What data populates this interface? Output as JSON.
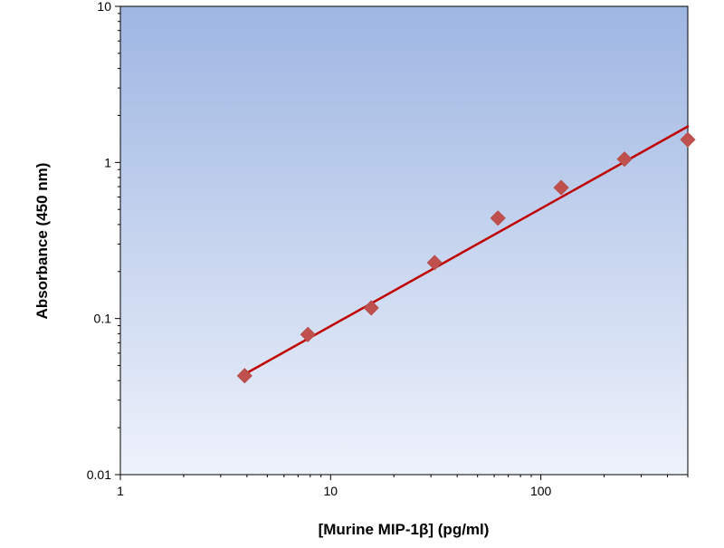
{
  "chart_data": {
    "type": "scatter",
    "title": "",
    "xlabel": "[Murine MIP-1β] (pg/ml)",
    "ylabel": "Absorbance (450 nm)",
    "x_scale": "log",
    "y_scale": "log",
    "xlim": [
      1,
      500
    ],
    "ylim": [
      0.01,
      10
    ],
    "x_ticks": [
      {
        "value": 1,
        "label": "1"
      },
      {
        "value": 10,
        "label": "10"
      },
      {
        "value": 100,
        "label": "100"
      }
    ],
    "y_ticks": [
      {
        "value": 0.01,
        "label": "0.01"
      },
      {
        "value": 0.1,
        "label": "0.1"
      },
      {
        "value": 1,
        "label": "1"
      },
      {
        "value": 10,
        "label": "10"
      }
    ],
    "grid": false,
    "legend": "none",
    "series": [
      {
        "x": [
          3.9,
          7.8,
          15.6,
          31.25,
          62.5,
          125,
          250,
          500
        ],
        "y": [
          0.043,
          0.079,
          0.117,
          0.228,
          0.44,
          0.69,
          1.05,
          1.4
        ],
        "marker": "diamond",
        "color": "#c0504d"
      }
    ],
    "fit_line": {
      "type": "power",
      "x": [
        3.9,
        500
      ],
      "y": [
        0.044,
        1.7
      ],
      "color": "#c00000"
    },
    "plot_background": {
      "top_color": "#9eb6e2",
      "bottom_color": "#eef2fb"
    }
  }
}
